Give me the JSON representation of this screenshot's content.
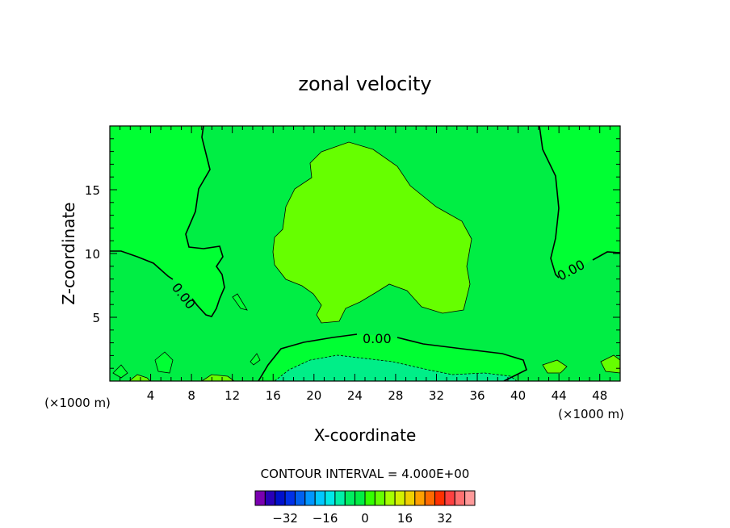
{
  "chart_data": {
    "type": "contour",
    "title": "zonal velocity",
    "xlabel": "X-coordinate",
    "ylabel": "Z-coordinate",
    "x_unit": "(×1000 m)",
    "x_unit_right": "(×1000 m)",
    "xlim": [
      0,
      50
    ],
    "ylim": [
      0,
      20
    ],
    "x_ticks": [
      "4",
      "8",
      "12",
      "16",
      "20",
      "24",
      "28",
      "32",
      "36",
      "40",
      "44",
      "48"
    ],
    "y_ticks": [
      "5",
      "10",
      "15"
    ],
    "contour_interval_text": "CONTOUR INTERVAL = 4.000E+00",
    "contour_labels": [
      "0.00",
      "0.00",
      "0.00"
    ],
    "regions": [
      {
        "level": "0 to 4",
        "color": "#00ee44",
        "description": "background field"
      },
      {
        "level": "4 to 8",
        "color": "#66ff00",
        "description": "upper-central positive core"
      },
      {
        "level": "-4 to 0",
        "color": "#00ff33",
        "description": "near-surface and side regions bounded by 0.00 contour"
      },
      {
        "level": "-8 to -4",
        "color": "#00ee88",
        "description": "near-surface negative core"
      }
    ],
    "colorbar": {
      "colors": [
        "#7a00b0",
        "#2a00b8",
        "#0010cc",
        "#0030e8",
        "#0060f0",
        "#0096ff",
        "#00c8ff",
        "#00e8e8",
        "#00f0a8",
        "#00ee60",
        "#00ee44",
        "#33ff00",
        "#66ff00",
        "#a6ff00",
        "#d4f000",
        "#f0d000",
        "#ffa000",
        "#ff6a00",
        "#ff3000",
        "#ff4040",
        "#ff7070",
        "#ff9a9a"
      ],
      "tick_labels": [
        "-32",
        "-16",
        "0",
        "16",
        "32"
      ]
    }
  }
}
